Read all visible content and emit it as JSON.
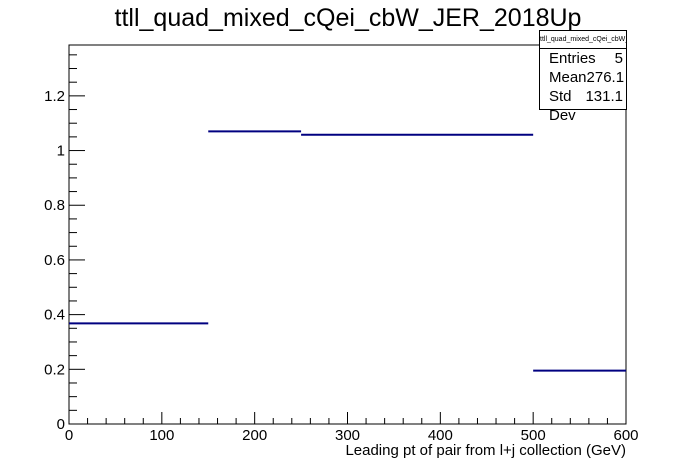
{
  "chart_data": {
    "type": "histogram",
    "title": "ttll_quad_mixed_cQei_cbW_JER_2018Up",
    "xlabel": "Leading pt of pair from l+j collection (GeV)",
    "ylabel": "",
    "xlim": [
      0,
      600
    ],
    "ylim": [
      0,
      1.386
    ],
    "xticks": [
      0,
      100,
      200,
      300,
      400,
      500,
      600
    ],
    "yticks": [
      0,
      0.2,
      0.4,
      0.6,
      0.8,
      1,
      1.2
    ],
    "grid": false,
    "line_color": "#000080",
    "bins": [
      {
        "x_low": 0,
        "x_high": 150,
        "value": 0.368
      },
      {
        "x_low": 150,
        "x_high": 250,
        "value": 1.07
      },
      {
        "x_low": 250,
        "x_high": 500,
        "value": 1.058
      },
      {
        "x_low": 500,
        "x_high": 600,
        "value": 0.195
      }
    ],
    "stats": {
      "title": "ttll_quad_mixed_cQei_cbW_JER_2018Up",
      "entries_label": "Entries",
      "entries": "5",
      "mean_label": "Mean",
      "mean": "276.1",
      "stddev_label": "Std Dev",
      "stddev": "131.1"
    }
  }
}
